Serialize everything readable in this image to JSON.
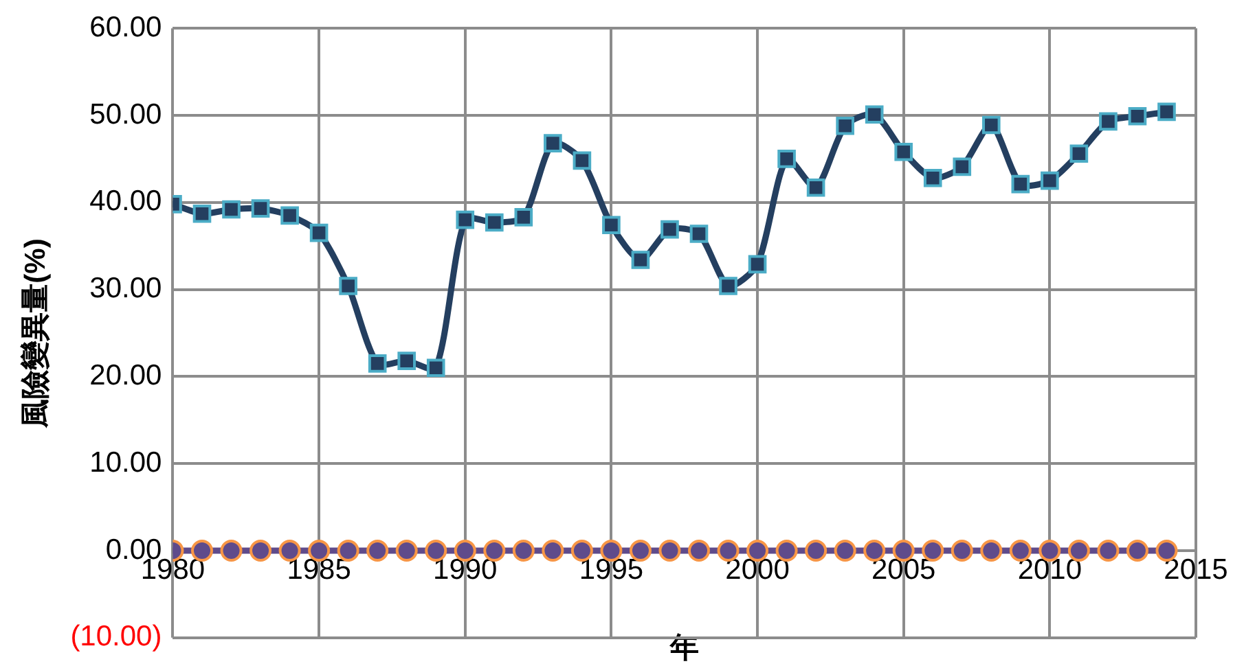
{
  "chart_data": {
    "type": "line",
    "xlabel": "年",
    "ylabel": "風險變異量(%)",
    "x": [
      1980,
      1981,
      1982,
      1983,
      1984,
      1985,
      1986,
      1987,
      1988,
      1989,
      1990,
      1991,
      1992,
      1993,
      1994,
      1995,
      1996,
      1997,
      1998,
      1999,
      2000,
      2001,
      2002,
      2003,
      2004,
      2005,
      2006,
      2007,
      2008,
      2009,
      2010,
      2011,
      2012,
      2013,
      2014
    ],
    "series": [
      {
        "color": "#243f60",
        "marker": "square",
        "values": [
          39.8,
          38.7,
          39.2,
          39.3,
          38.5,
          36.5,
          30.4,
          21.5,
          21.8,
          21.0,
          38.0,
          37.7,
          38.3,
          46.8,
          44.8,
          37.4,
          33.4,
          36.9,
          36.4,
          30.4,
          32.9,
          45.0,
          41.7,
          48.8,
          50.1,
          45.8,
          42.8,
          44.1,
          48.9,
          42.1,
          42.5,
          45.6,
          49.3,
          49.9,
          50.4
        ]
      },
      {
        "color": "#5f4b8b",
        "marker": "circle",
        "values": [
          0,
          0,
          0,
          0,
          0,
          0,
          0,
          0,
          0,
          0,
          0,
          0,
          0,
          0,
          0,
          0,
          0,
          0,
          0,
          0,
          0,
          0,
          0,
          0,
          0,
          0,
          0,
          0,
          0,
          0,
          0,
          0,
          0,
          0,
          0
        ]
      }
    ],
    "xlim": [
      1980,
      2015
    ],
    "xticks": [
      1980,
      1985,
      1990,
      1995,
      2000,
      2005,
      2010,
      2015
    ],
    "ylim": [
      -10,
      60
    ],
    "yticks": [
      {
        "value": -10,
        "label": "(10.00)"
      },
      {
        "value": 0,
        "label": "0.00"
      },
      {
        "value": 10,
        "label": "10.00"
      },
      {
        "value": 20,
        "label": "20.00"
      },
      {
        "value": 30,
        "label": "30.00"
      },
      {
        "value": 40,
        "label": "40.00"
      },
      {
        "value": 50,
        "label": "50.00"
      },
      {
        "value": 60,
        "label": "60.00"
      }
    ],
    "grid": true,
    "legend": false,
    "line_style": "solid"
  }
}
